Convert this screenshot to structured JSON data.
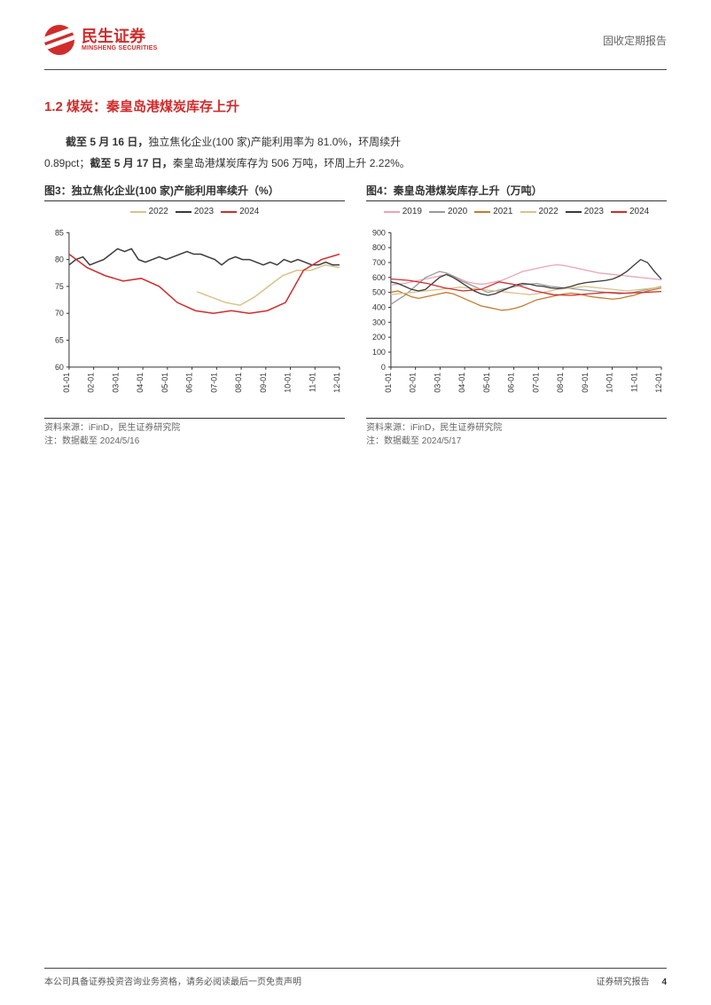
{
  "header": {
    "company_cn": "民生证券",
    "company_en": "MINSHENG SECURITIES",
    "report_type": "固收定期报告"
  },
  "section": {
    "number": "1.2",
    "title": "煤炭：秦皇岛港煤炭库存上升"
  },
  "body": {
    "p1_bold1": "截至 5 月 16 日，",
    "p1_mid": "独立焦化企业(100 家)产能利用率为 81.0%，环周续升",
    "p2_prefix": "0.89pct；",
    "p2_bold": "截至 5 月 17 日，",
    "p2_rest": "秦皇岛港煤炭库存为 506 万吨，环周上升 2.22%。"
  },
  "chart3": {
    "type": "line",
    "title": "图3：独立焦化企业(100 家)产能利用率续升（%）",
    "source": "资料来源：iFinD，民生证券研究院",
    "note": "注：数据截至 2024/5/16",
    "legend": [
      {
        "label": "2022",
        "color": "#d8c28a"
      },
      {
        "label": "2023",
        "color": "#3a3a3a"
      },
      {
        "label": "2024",
        "color": "#d02c2c"
      }
    ],
    "ylim": [
      60,
      85
    ],
    "ytick_step": 5,
    "x_labels": [
      "01-01",
      "02-01",
      "03-01",
      "04-01",
      "05-01",
      "06-01",
      "07-01",
      "08-01",
      "09-01",
      "10-01",
      "11-01",
      "12-01"
    ],
    "x_count": 12,
    "background_color": "#ffffff",
    "axis_color": "#333333",
    "grid_color": "#333333",
    "label_fontsize": 9,
    "line_width": 1.5,
    "series": {
      "2022": [
        null,
        null,
        null,
        null,
        null,
        null,
        null,
        null,
        null,
        74,
        73,
        72,
        71.5,
        73,
        75,
        77,
        78,
        78,
        79,
        78.5
      ],
      "2023": [
        79,
        80,
        80.5,
        79,
        79.5,
        80,
        81,
        82,
        81.5,
        82,
        80,
        79.5,
        80,
        80.5,
        80,
        80.5,
        81,
        81.5,
        81,
        81,
        80.5,
        80,
        79,
        80,
        80.5,
        80,
        80,
        79.5,
        79,
        79.5,
        79,
        80,
        79.5,
        80,
        79.5,
        79,
        79,
        79.5,
        79,
        79
      ],
      "2024": [
        81,
        78.5,
        77,
        76,
        76.5,
        75,
        72,
        70.5,
        70,
        70.5,
        70,
        70.5,
        72,
        78,
        80,
        81
      ]
    }
  },
  "chart4": {
    "type": "line",
    "title": "图4：秦皇岛港煤炭库存上升（万吨）",
    "source": "资料来源：iFinD，民生证券研究院",
    "note": "注：数据截至 2024/5/17",
    "legend": [
      {
        "label": "2019",
        "color": "#e8a5b5"
      },
      {
        "label": "2020",
        "color": "#999999"
      },
      {
        "label": "2021",
        "color": "#c47b2d"
      },
      {
        "label": "2022",
        "color": "#d8c28a"
      },
      {
        "label": "2023",
        "color": "#3a3a3a"
      },
      {
        "label": "2024",
        "color": "#d02c2c"
      }
    ],
    "ylim": [
      0,
      900
    ],
    "ytick_step": 100,
    "x_labels": [
      "01-01",
      "02-01",
      "03-01",
      "04-01",
      "05-01",
      "06-01",
      "07-01",
      "08-01",
      "09-01",
      "10-01",
      "11-01",
      "12-01"
    ],
    "x_count": 12,
    "background_color": "#ffffff",
    "axis_color": "#333333",
    "grid_color": "#333333",
    "label_fontsize": 9,
    "line_width": 1.3,
    "series": {
      "2019": [
        550,
        555,
        560,
        570,
        580,
        590,
        600,
        610,
        620,
        610,
        590,
        570,
        560,
        555,
        560,
        570,
        580,
        600,
        620,
        640,
        650,
        660,
        670,
        680,
        685,
        680,
        670,
        660,
        650,
        640,
        630,
        625,
        620,
        615,
        610,
        605,
        600,
        595,
        590,
        585
      ],
      "2020": [
        420,
        450,
        480,
        520,
        560,
        600,
        620,
        640,
        630,
        610,
        580,
        560,
        540,
        520,
        500,
        510,
        520,
        530,
        540,
        550,
        555,
        560,
        550,
        540,
        535,
        530,
        525,
        520,
        515,
        510,
        505,
        500,
        495,
        490,
        495,
        500,
        510,
        520,
        530,
        540
      ],
      "2021": [
        500,
        510,
        490,
        470,
        460,
        470,
        480,
        490,
        500,
        490,
        470,
        450,
        430,
        410,
        400,
        390,
        380,
        385,
        395,
        410,
        430,
        450,
        460,
        470,
        480,
        490,
        495,
        490,
        480,
        470,
        465,
        460,
        455,
        460,
        470,
        480,
        495,
        510,
        520,
        530
      ],
      "2022": [
        485,
        490,
        495,
        500,
        505,
        510,
        515,
        520,
        525,
        530,
        535,
        530,
        525,
        520,
        515,
        510,
        505,
        500,
        495,
        490,
        485,
        490,
        500,
        510,
        520,
        525,
        530,
        535,
        540,
        535,
        530,
        525,
        520,
        515,
        510,
        515,
        520,
        525,
        530,
        535
      ],
      "2023": [
        570,
        560,
        540,
        520,
        510,
        520,
        560,
        600,
        620,
        600,
        570,
        540,
        510,
        490,
        480,
        490,
        510,
        530,
        550,
        560,
        555,
        545,
        540,
        530,
        525,
        530,
        540,
        555,
        565,
        570,
        575,
        580,
        590,
        610,
        640,
        680,
        720,
        700,
        640,
        590
      ],
      "2024": [
        590,
        580,
        560,
        530,
        510,
        520,
        570,
        550,
        510,
        485,
        480,
        490,
        500,
        495,
        500,
        506
      ]
    }
  },
  "footer": {
    "left": "本公司具备证券投资咨询业务资格，请务必阅读最后一页免责声明",
    "right_label": "证券研究报告",
    "page": "4"
  }
}
